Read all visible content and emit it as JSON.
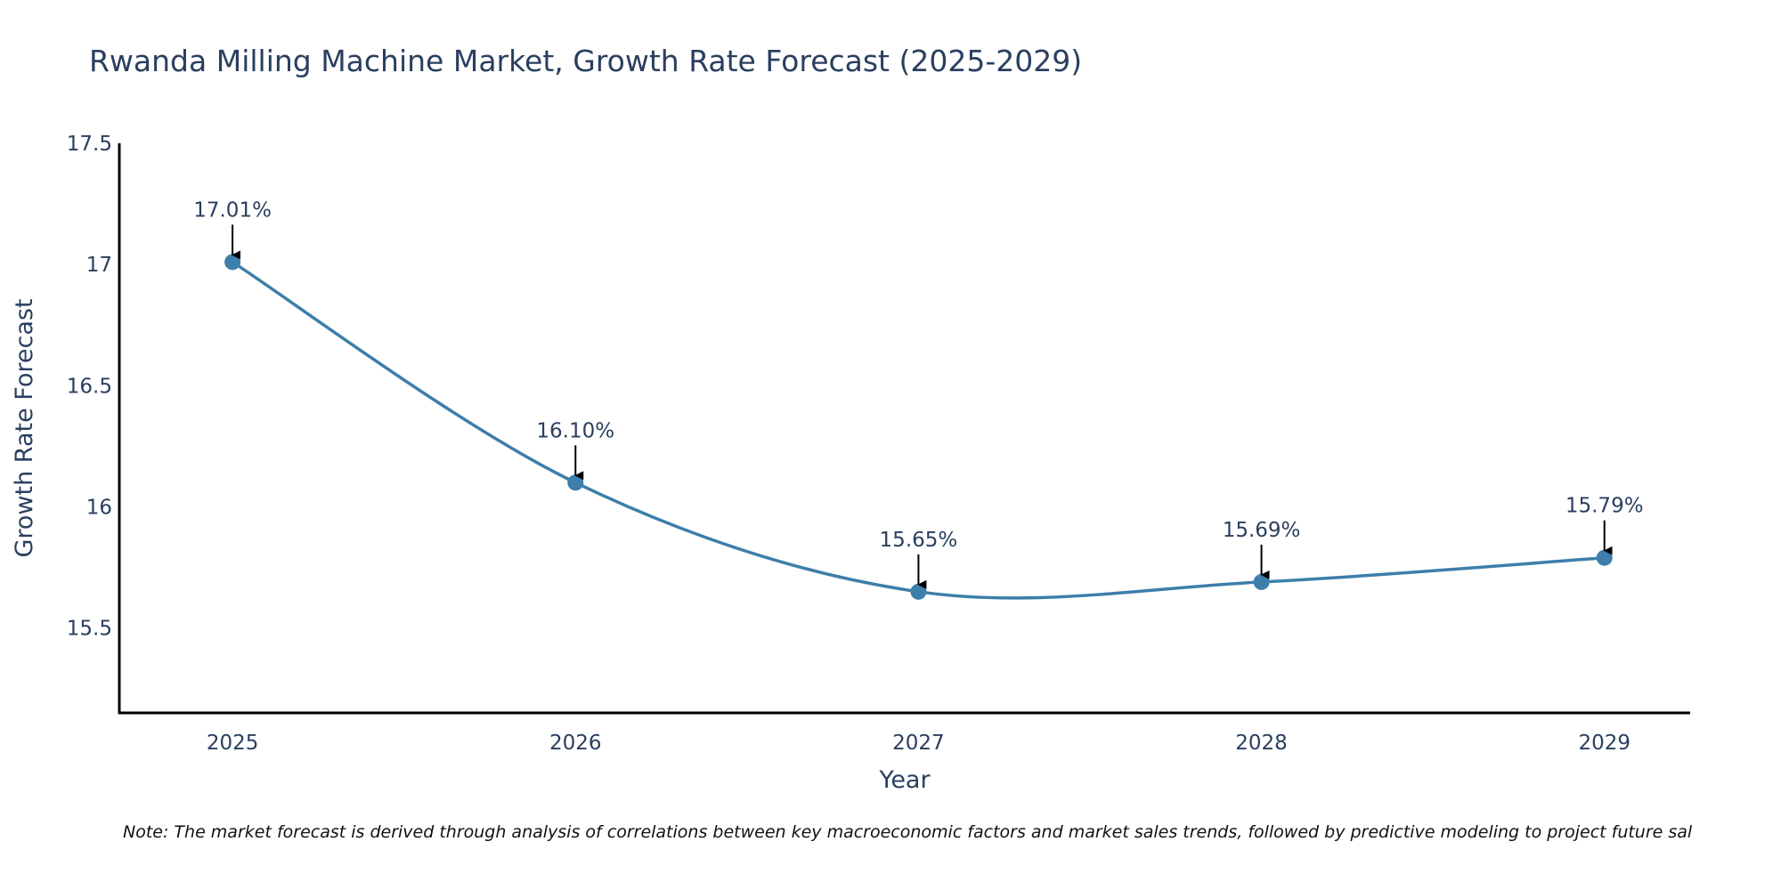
{
  "chart_data": {
    "type": "line",
    "title": "Rwanda Milling Machine Market, Growth Rate Forecast (2025-2029)",
    "xlabel": "Year",
    "ylabel": "Growth Rate Forecast",
    "categories": [
      "2025",
      "2026",
      "2027",
      "2028",
      "2029"
    ],
    "series": [
      {
        "name": "Growth Rate Forecast",
        "values": [
          17.01,
          16.1,
          15.65,
          15.69,
          15.79
        ],
        "color": "#3d7eaa"
      }
    ],
    "annotations": [
      "17.01%",
      "16.10%",
      "15.65%",
      "15.69%",
      "15.79%"
    ],
    "yticks": [
      15.5,
      16,
      16.5,
      17,
      17.5
    ],
    "ytick_labels": [
      "15.5",
      "16",
      "16.5",
      "17",
      "17.5"
    ],
    "ylim": [
      15.15,
      17.5
    ],
    "xlim": [
      2024.67,
      2029.25
    ],
    "grid": false,
    "legend": "none",
    "note": "Note: The market forecast is derived through analysis of correlations between key macroeconomic factors and market sales trends, followed by predictive modeling to project future sal"
  }
}
